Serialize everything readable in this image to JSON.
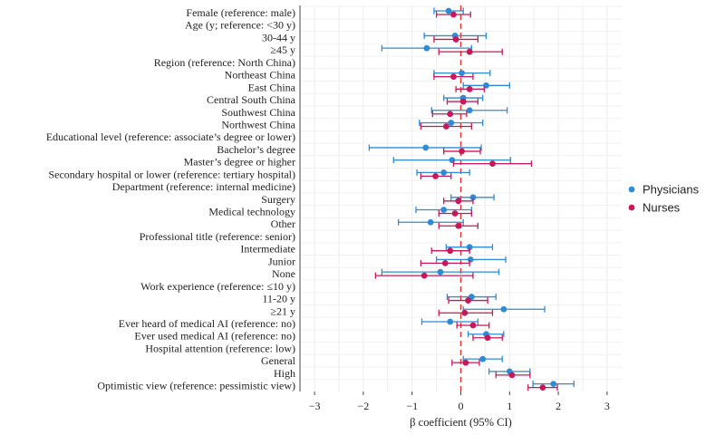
{
  "chart_data": {
    "type": "forest",
    "xlabel": "β coefficient (95% CI)",
    "xlim": [
      -3.3,
      3.3
    ],
    "xticks": [
      -3,
      -2,
      -1,
      0,
      1,
      2,
      3
    ],
    "xtick_labels": [
      "−3",
      "−2",
      "−1",
      "0",
      "1",
      "2",
      "3"
    ],
    "reference_line": 0,
    "grid": true,
    "legend_position": "right",
    "series": [
      {
        "name": "Physicians",
        "color": "#2e8bd6"
      },
      {
        "name": "Nurses",
        "color": "#c8185a"
      }
    ],
    "rows": [
      {
        "label": "Female (reference: male)",
        "header": false,
        "physicians": [
          -0.25,
          -0.55,
          0.05
        ],
        "nurses": [
          -0.15,
          -0.5,
          0.2
        ]
      },
      {
        "label": "Age (y; reference: <30 y)",
        "header": true
      },
      {
        "label": "30-44 y",
        "header": false,
        "physicians": [
          -0.12,
          -0.75,
          0.52
        ],
        "nurses": [
          -0.1,
          -0.55,
          0.35
        ]
      },
      {
        "label": "≥45 y",
        "header": false,
        "physicians": [
          -0.7,
          -1.62,
          0.22
        ],
        "nurses": [
          0.18,
          -0.45,
          0.85
        ]
      },
      {
        "label": "Region (reference: North China)",
        "header": true
      },
      {
        "label": "Northeast China",
        "header": false,
        "physicians": [
          0.02,
          -0.55,
          0.6
        ],
        "nurses": [
          -0.15,
          -0.55,
          0.25
        ]
      },
      {
        "label": "East China",
        "header": false,
        "physicians": [
          0.52,
          0.05,
          1.0
        ],
        "nurses": [
          0.18,
          -0.1,
          0.48
        ]
      },
      {
        "label": "Central South China",
        "header": false,
        "physicians": [
          0.05,
          -0.35,
          0.45
        ],
        "nurses": [
          0.05,
          -0.28,
          0.35
        ]
      },
      {
        "label": "Southwest China",
        "header": false,
        "physicians": [
          0.18,
          -0.6,
          0.95
        ],
        "nurses": [
          -0.22,
          -0.58,
          0.12
        ]
      },
      {
        "label": "Northwest China",
        "header": false,
        "physicians": [
          -0.2,
          -0.85,
          0.45
        ],
        "nurses": [
          -0.3,
          -0.82,
          0.22
        ]
      },
      {
        "label": "Educational level (reference: associate’s degree or lower)",
        "header": true
      },
      {
        "label": "Bachelor’s degree",
        "header": false,
        "physicians": [
          -0.72,
          -1.88,
          0.42
        ],
        "nurses": [
          0.02,
          -0.35,
          0.4
        ]
      },
      {
        "label": "Master’s degree or higher",
        "header": false,
        "physicians": [
          -0.18,
          -1.38,
          1.02
        ],
        "nurses": [
          0.65,
          -0.15,
          1.45
        ]
      },
      {
        "label": "Secondary hospital or lower (reference: tertiary hospital)",
        "header": false,
        "physicians": [
          -0.35,
          -0.9,
          0.18
        ],
        "nurses": [
          -0.52,
          -0.82,
          -0.2
        ]
      },
      {
        "label": "Department (reference: internal medicine)",
        "header": true
      },
      {
        "label": "Surgery",
        "header": false,
        "physicians": [
          0.25,
          -0.2,
          0.68
        ],
        "nurses": [
          -0.05,
          -0.35,
          0.25
        ]
      },
      {
        "label": "Medical technology",
        "header": false,
        "physicians": [
          -0.35,
          -0.92,
          0.22
        ],
        "nurses": [
          -0.12,
          -0.45,
          0.22
        ]
      },
      {
        "label": "Other",
        "header": false,
        "physicians": [
          -0.62,
          -1.28,
          0.05
        ],
        "nurses": [
          -0.05,
          -0.45,
          0.35
        ]
      },
      {
        "label": "Professional title (reference: senior)",
        "header": true
      },
      {
        "label": "Intermediate",
        "header": false,
        "physicians": [
          0.18,
          -0.3,
          0.65
        ],
        "nurses": [
          -0.22,
          -0.6,
          0.18
        ]
      },
      {
        "label": "Junior",
        "header": false,
        "physicians": [
          0.2,
          -0.5,
          0.92
        ],
        "nurses": [
          -0.32,
          -0.82,
          0.18
        ]
      },
      {
        "label": "None",
        "header": false,
        "physicians": [
          -0.42,
          -1.62,
          0.78
        ],
        "nurses": [
          -0.75,
          -1.75,
          0.25
        ]
      },
      {
        "label": "Work experience (reference: ≤10 y)",
        "header": true
      },
      {
        "label": "11-20 y",
        "header": false,
        "physicians": [
          0.22,
          -0.28,
          0.72
        ],
        "nurses": [
          0.15,
          -0.25,
          0.55
        ]
      },
      {
        "label": "≥21 y",
        "header": false,
        "physicians": [
          0.88,
          0.05,
          1.72
        ],
        "nurses": [
          0.08,
          -0.45,
          0.65
        ]
      },
      {
        "label": "Ever heard of medical AI (reference: no)",
        "header": false,
        "physicians": [
          -0.22,
          -0.8,
          0.35
        ],
        "nurses": [
          0.25,
          -0.08,
          0.58
        ]
      },
      {
        "label": "Ever used medical AI (reference: no)",
        "header": false,
        "physicians": [
          0.52,
          0.15,
          0.88
        ],
        "nurses": [
          0.55,
          0.25,
          0.85
        ]
      },
      {
        "label": "Hospital attention (reference: low)",
        "header": true
      },
      {
        "label": "General",
        "header": false,
        "physicians": [
          0.45,
          0.05,
          0.85
        ],
        "nurses": [
          0.1,
          -0.18,
          0.38
        ]
      },
      {
        "label": "High",
        "header": false,
        "physicians": [
          1.0,
          0.58,
          1.42
        ],
        "nurses": [
          1.05,
          0.72,
          1.42
        ]
      },
      {
        "label": "Optimistic view (reference: pessimistic view)",
        "header": false,
        "physicians": [
          1.9,
          1.48,
          2.32
        ],
        "nurses": [
          1.68,
          1.38,
          1.98
        ]
      }
    ]
  }
}
